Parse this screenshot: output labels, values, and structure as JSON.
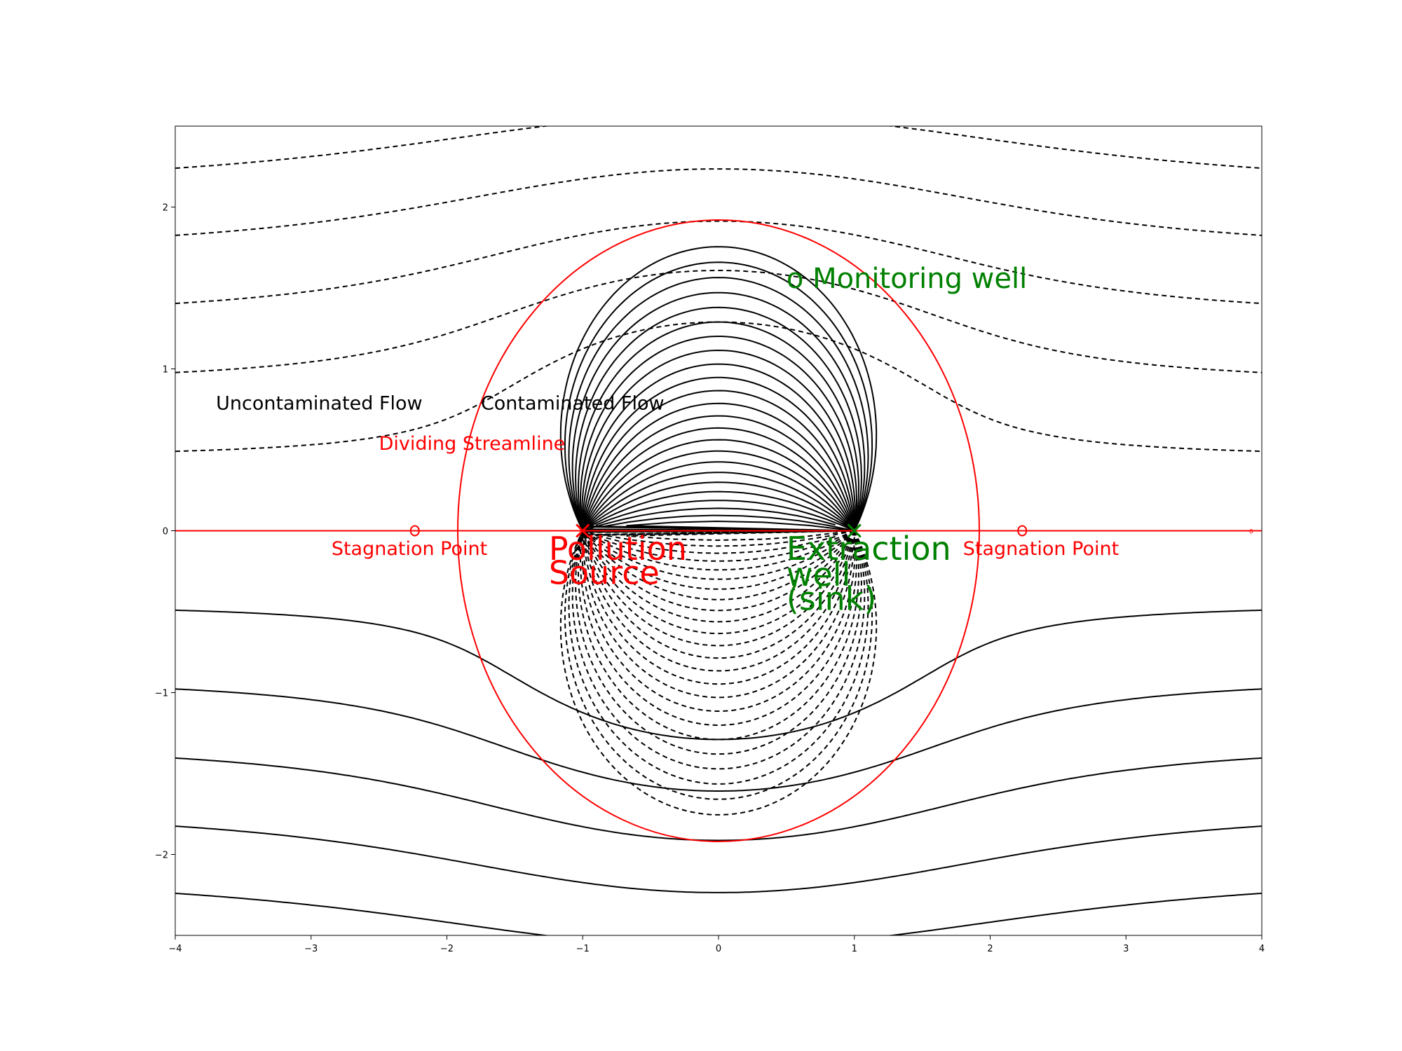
{
  "chart_data": {
    "type": "line",
    "title": "",
    "xlabel": "",
    "ylabel": "",
    "xlim": [
      -4,
      4
    ],
    "ylim": [
      -2.5,
      2.5
    ],
    "x_ticks": [
      "−4",
      "−3",
      "−2",
      "−1",
      "0",
      "1",
      "2",
      "3",
      "4"
    ],
    "y_ticks": [
      "−2",
      "−1",
      "0",
      "1",
      "2"
    ],
    "grid": false,
    "source": {
      "x": -1,
      "y": 0
    },
    "sink": {
      "x": 1,
      "y": 0
    },
    "stagnation_points": [
      {
        "x": -2.236,
        "y": 0
      },
      {
        "x": 2.236,
        "y": 0
      }
    ],
    "dividing_circle_radius": 1.92,
    "annotations": [
      {
        "id": "uncontaminated",
        "text": "Uncontaminated Flow",
        "x": -3.7,
        "y": 0.75,
        "color": "#000000"
      },
      {
        "id": "contaminated",
        "text": "Contaminated Flow",
        "x": -1.75,
        "y": 0.75,
        "color": "#000000"
      },
      {
        "id": "dividing",
        "text": "Dividing Streamline",
        "x": -2.5,
        "y": 0.5,
        "color": "#ff0000"
      },
      {
        "id": "stag_left",
        "text": "Stagnation Point",
        "x": -2.85,
        "y": -0.15,
        "color": "#ff0000"
      },
      {
        "id": "stag_right",
        "text": "Stagnation Point",
        "x": 1.8,
        "y": -0.15,
        "color": "#ff0000"
      },
      {
        "id": "monitoring",
        "text": "o Monitoring well",
        "x": 0.5,
        "y": 1.5,
        "color": "#008000"
      },
      {
        "id": "pollution1",
        "text": "Pollution",
        "x": -1.25,
        "y": -0.18,
        "color": "#ff0000"
      },
      {
        "id": "pollution2",
        "text": "Source",
        "x": -1.25,
        "y": -0.33,
        "color": "#ff0000"
      },
      {
        "id": "extraction1",
        "text": "Extraction",
        "x": 0.5,
        "y": -0.18,
        "color": "#008000"
      },
      {
        "id": "extraction2",
        "text": "well",
        "x": 0.5,
        "y": -0.34,
        "color": "#008000"
      },
      {
        "id": "extraction3",
        "text": "(sink)",
        "x": 0.5,
        "y": -0.49,
        "color": "#008000"
      }
    ],
    "small_marker_label": "0"
  }
}
